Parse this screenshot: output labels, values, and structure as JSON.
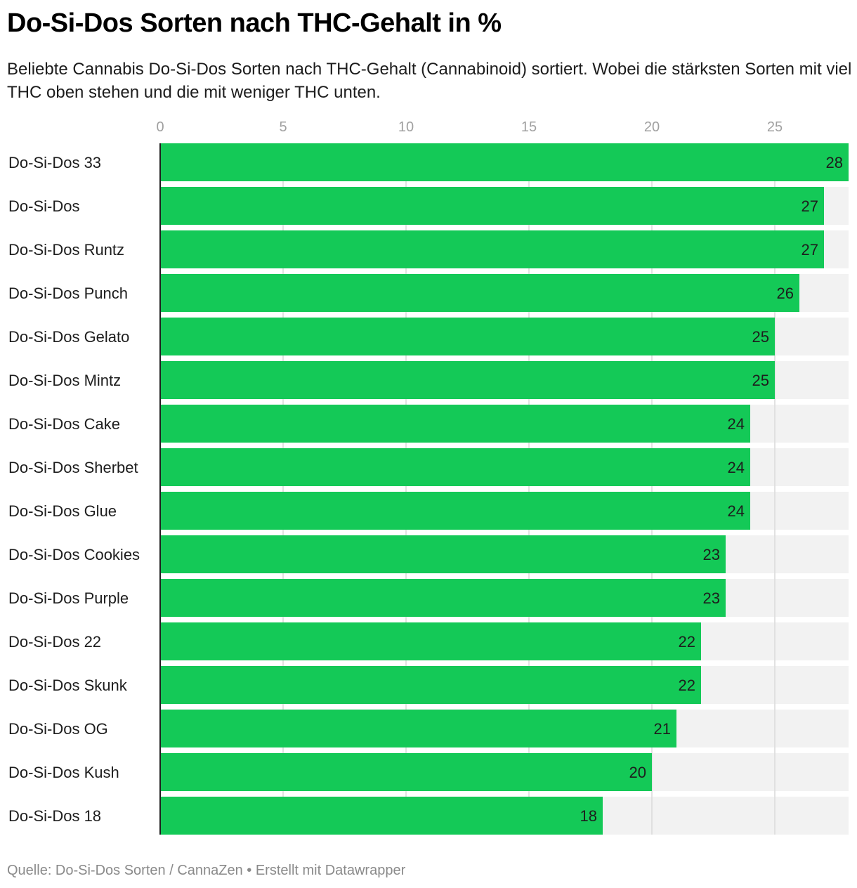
{
  "title": "Do-Si-Dos Sorten nach THC-Gehalt in %",
  "subtitle": "Beliebte Cannabis Do-Si-Dos Sorten nach THC-Gehalt (Cannabinoid) sortiert. Wobei die stärksten Sorten mit viel THC oben stehen und die mit weniger THC unten.",
  "footer": {
    "source": "Quelle: Do-Si-Dos Sorten / CannaZen",
    "separator": " • ",
    "credit": "Erstellt mit Datawrapper"
  },
  "colors": {
    "bar": "#14c957",
    "track": "#f2f2f2",
    "grid": "#d9d9d9",
    "axis": "#1d1d1d"
  },
  "chart_data": {
    "type": "bar",
    "orientation": "horizontal",
    "xlim": [
      0,
      28
    ],
    "ticks": [
      0,
      5,
      10,
      15,
      20,
      25
    ],
    "tick_labels": [
      "0",
      "5",
      "10",
      "15",
      "20",
      "25"
    ],
    "grid": true,
    "background_track": true,
    "categories": [
      "Do-Si-Dos 33",
      "Do-Si-Dos",
      "Do-Si-Dos Runtz",
      "Do-Si-Dos Punch",
      "Do-Si-Dos Gelato",
      "Do-Si-Dos Mintz",
      "Do-Si-Dos Cake",
      "Do-Si-Dos Sherbet",
      "Do-Si-Dos Glue",
      "Do-Si-Dos Cookies",
      "Do-Si-Dos Purple",
      "Do-Si-Dos 22",
      "Do-Si-Dos Skunk",
      "Do-Si-Dos OG",
      "Do-Si-Dos Kush",
      "Do-Si-Dos 18"
    ],
    "values": [
      28,
      27,
      27,
      26,
      25,
      25,
      24,
      24,
      24,
      23,
      23,
      22,
      22,
      21,
      20,
      18
    ],
    "value_labels": [
      "28",
      "27",
      "27",
      "26",
      "25",
      "25",
      "24",
      "24",
      "24",
      "23",
      "23",
      "22",
      "22",
      "21",
      "20",
      "18"
    ]
  }
}
